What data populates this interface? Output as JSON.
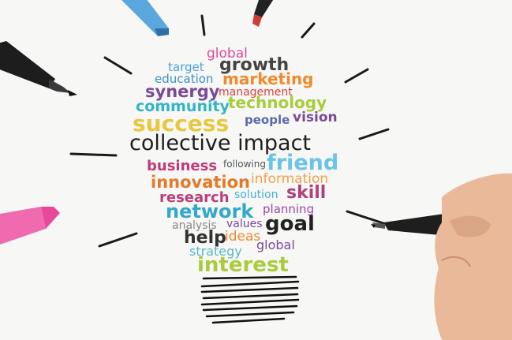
{
  "scene": {
    "background": "#f7f7f5",
    "description_objects": [
      "blue-marker",
      "red-marker",
      "black-marker-left",
      "pink-marker",
      "black-marker-in-hand",
      "hand",
      "lightbulb-word-cloud"
    ]
  },
  "words": {
    "global_top": "global",
    "target": "target",
    "growth": "growth",
    "education": "education",
    "marketing": "marketing",
    "synergy": "synergy",
    "management": "management",
    "community": "community",
    "technology": "technology",
    "success": "success",
    "people": "people",
    "vision": "vision",
    "collective_impact": "collective impact",
    "business": "business",
    "following": "following",
    "friend": "friend",
    "innovation": "innovation",
    "information": "information",
    "research": "research",
    "solution": "solution",
    "skill": "skill",
    "network": "network",
    "planning": "planning",
    "analysis": "analysis",
    "values": "values",
    "goal": "goal",
    "help": "help",
    "ideas": "ideas",
    "strategy": "strategy",
    "global_bottom": "global",
    "interest": "interest"
  },
  "colors": {
    "blue": "#4aa3df",
    "purple": "#7a4a9a",
    "orange": "#f08a2c",
    "green": "#6fb84a",
    "pink": "#e0489a",
    "teal": "#33b5c8",
    "red": "#d94040",
    "yellow": "#e8c840",
    "dark": "#333333",
    "gray": "#7a7a7a",
    "lime": "#a8cc3c"
  }
}
